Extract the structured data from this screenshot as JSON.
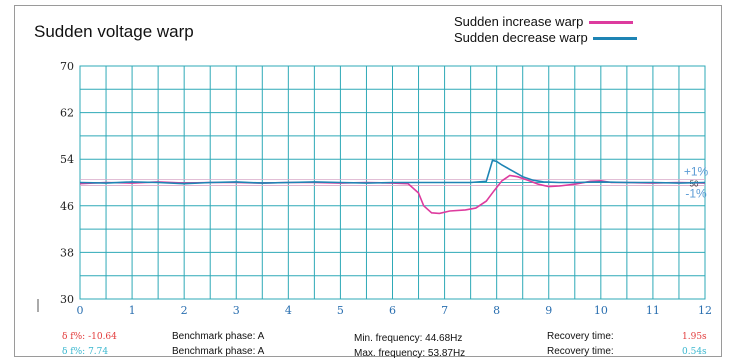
{
  "colors": {
    "increase": "#dd3b9e",
    "decrease": "#1e84b4",
    "grid": "#2ea9b7",
    "axis_y_label": "#222222",
    "axis_x_label": "#2a6fb0",
    "band_label": "#5b9bd5",
    "footer_red": "#e23b3b",
    "footer_cyan": "#3ab7cf"
  },
  "chart_data": {
    "type": "line",
    "title": "Sudden voltage warp",
    "xlabel": "",
    "ylabel": "",
    "xlim": [
      0,
      12
    ],
    "ylim": [
      30,
      70
    ],
    "x_ticks": [
      "0",
      "1",
      "2",
      "3",
      "4",
      "5",
      "6",
      "7",
      "8",
      "9",
      "10",
      "11",
      "12"
    ],
    "y_ticks": [
      "30",
      "38",
      "46",
      "54",
      "62",
      "70"
    ],
    "band": {
      "upper_label": "+1%",
      "center_label": "50",
      "lower_label": "-1%"
    },
    "grid": true,
    "legend_position": "top-right",
    "series": [
      {
        "name": "Sudden increase warp",
        "points": [
          [
            0,
            49.8
          ],
          [
            0.5,
            50.0
          ],
          [
            1,
            49.9
          ],
          [
            1.5,
            50.1
          ],
          [
            2,
            49.9
          ],
          [
            2.5,
            50.0
          ],
          [
            3,
            50.0
          ],
          [
            3.5,
            49.9
          ],
          [
            4,
            50.0
          ],
          [
            4.5,
            50.0
          ],
          [
            5,
            49.9
          ],
          [
            5.5,
            50.0
          ],
          [
            6,
            49.9
          ],
          [
            6.3,
            49.8
          ],
          [
            6.5,
            48.2
          ],
          [
            6.6,
            46.0
          ],
          [
            6.75,
            44.8
          ],
          [
            6.9,
            44.7
          ],
          [
            7.1,
            45.1
          ],
          [
            7.4,
            45.3
          ],
          [
            7.6,
            45.6
          ],
          [
            7.8,
            46.8
          ],
          [
            7.95,
            48.6
          ],
          [
            8.1,
            50.3
          ],
          [
            8.25,
            51.2
          ],
          [
            8.4,
            51.0
          ],
          [
            8.6,
            50.4
          ],
          [
            8.8,
            49.7
          ],
          [
            9.0,
            49.3
          ],
          [
            9.2,
            49.4
          ],
          [
            9.5,
            49.7
          ],
          [
            9.8,
            50.2
          ],
          [
            10,
            50.3
          ],
          [
            10.2,
            50.0
          ],
          [
            10.5,
            50.0
          ],
          [
            11,
            49.9
          ],
          [
            11.5,
            50.0
          ],
          [
            12,
            49.9
          ]
        ]
      },
      {
        "name": "Sudden decrease warp",
        "points": [
          [
            0,
            50.0
          ],
          [
            0.5,
            49.9
          ],
          [
            1,
            50.1
          ],
          [
            1.5,
            50.0
          ],
          [
            2,
            49.8
          ],
          [
            2.5,
            50.0
          ],
          [
            3,
            50.1
          ],
          [
            3.5,
            49.9
          ],
          [
            4,
            50.0
          ],
          [
            4.5,
            50.1
          ],
          [
            5,
            50.0
          ],
          [
            5.5,
            49.9
          ],
          [
            6,
            50.0
          ],
          [
            6.5,
            50.0
          ],
          [
            7,
            50.0
          ],
          [
            7.5,
            50.0
          ],
          [
            7.8,
            50.2
          ],
          [
            7.92,
            53.8
          ],
          [
            8.0,
            53.6
          ],
          [
            8.1,
            53.0
          ],
          [
            8.3,
            52.0
          ],
          [
            8.5,
            51.0
          ],
          [
            8.7,
            50.4
          ],
          [
            8.9,
            50.1
          ],
          [
            9.2,
            50.0
          ],
          [
            9.5,
            50.0
          ],
          [
            10,
            50.1
          ],
          [
            10.5,
            50.0
          ],
          [
            11,
            50.0
          ],
          [
            11.5,
            49.9
          ],
          [
            12,
            50.0
          ]
        ]
      }
    ]
  },
  "footer": {
    "row1": {
      "delta_label": "δ f%:",
      "delta_value": "-10.64",
      "phase": "Benchmark phase: A",
      "freq": "Min. frequency: 44.68Hz",
      "recovery_label": "Recovery time:",
      "recovery_value": "1.95s"
    },
    "row2": {
      "delta_label": "δ f%:",
      "delta_value": "7.74",
      "phase": "Benchmark phase: A",
      "freq": "Max. frequency: 53.87Hz",
      "recovery_label": "Recovery time:",
      "recovery_value": "0.54s"
    }
  }
}
